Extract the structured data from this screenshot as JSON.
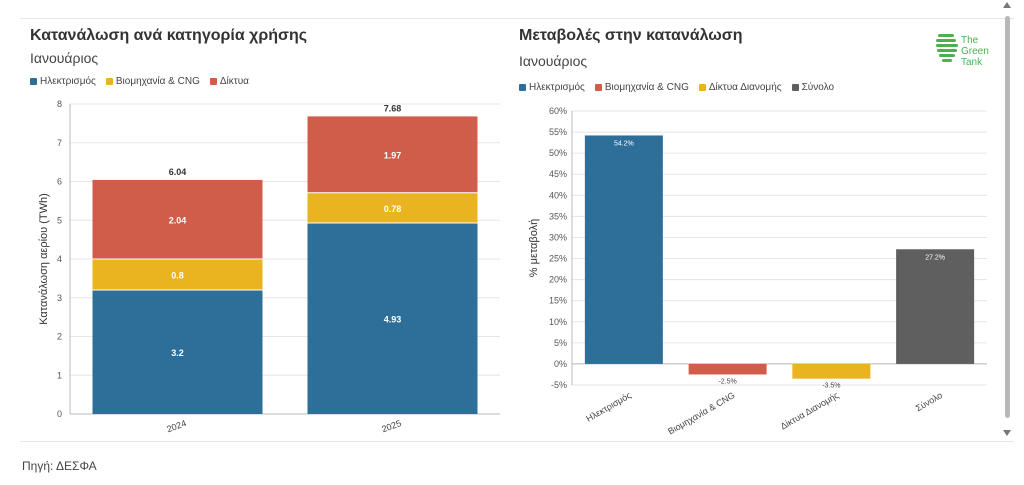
{
  "charts": [
    {
      "title": "Κατανάλωση ανά κατηγορία χρήσης",
      "subtitle": "Ιανουάριος",
      "legend": [
        {
          "label": "Ηλεκτρισμός",
          "color": "#2e6f99"
        },
        {
          "label": "Βιομηχανία & CNG",
          "color": "#e9b41f"
        },
        {
          "label": "Δίκτυα",
          "color": "#d05c4a"
        }
      ]
    },
    {
      "title": "Μεταβολές στην κατανάλωση",
      "subtitle": "Ιανουάριος",
      "legend": [
        {
          "label": "Ηλεκτρισμός",
          "color": "#2e6f99"
        },
        {
          "label": "Βιομηχανία & CNG",
          "color": "#d05c4a"
        },
        {
          "label": "Δίκτυα Διανομής",
          "color": "#e9b41f"
        },
        {
          "label": "Σύνολο",
          "color": "#5f5f5f"
        }
      ]
    }
  ],
  "chart_data": [
    {
      "type": "bar",
      "stacked": true,
      "title": "Κατανάλωση ανά κατηγορία χρήσης",
      "subtitle": "Ιανουάριος",
      "ylabel": "Κατανάλωση αερίου (TWh)",
      "xlabel": "",
      "categories": [
        "2024",
        "2025"
      ],
      "series": [
        {
          "name": "Ηλεκτρισμός",
          "values": [
            3.2,
            4.93
          ],
          "labels": [
            "3.2",
            "4.93"
          ],
          "color": "#2e6f99"
        },
        {
          "name": "Βιομηχανία & CNG",
          "values": [
            0.8,
            0.78
          ],
          "labels": [
            "0.8",
            "0.78"
          ],
          "color": "#e9b41f"
        },
        {
          "name": "Δίκτυα",
          "values": [
            2.04,
            1.97
          ],
          "labels": [
            "2.04",
            "1.97"
          ],
          "color": "#d05c4a"
        }
      ],
      "totals": [
        "6.04",
        "7.68"
      ],
      "ylim": [
        0,
        8
      ],
      "yticks": [
        "0",
        "1",
        "2",
        "3",
        "4",
        "5",
        "6",
        "7",
        "8"
      ],
      "grid": true,
      "legend_position": "top-left"
    },
    {
      "type": "bar",
      "title": "Μεταβολές στην κατανάλωση",
      "subtitle": "Ιανουάριος",
      "ylabel": "% μεταβολή",
      "xlabel": "",
      "categories": [
        "Ηλεκτρισμός",
        "Βιομηχανία & CNG",
        "Δίκτυα Διανομής",
        "Σύνολο"
      ],
      "values": [
        54.2,
        -2.5,
        -3.5,
        27.2
      ],
      "value_labels": [
        "54.2%",
        "-2.5%",
        "-3.5%",
        "27.2%"
      ],
      "colors": [
        "#2e6f99",
        "#d05c4a",
        "#e9b41f",
        "#5f5f5f"
      ],
      "ylim": [
        -5,
        60
      ],
      "yticks": [
        "-5%",
        "0%",
        "5%",
        "10%",
        "15%",
        "20%",
        "25%",
        "30%",
        "35%",
        "40%",
        "45%",
        "50%",
        "55%",
        "60%"
      ],
      "grid": true,
      "legend_position": "top-left"
    }
  ],
  "logo": {
    "line1": "The",
    "line2": "Green",
    "line3": "Tank"
  },
  "source": "Πηγή: ΔΕΣΦΑ"
}
